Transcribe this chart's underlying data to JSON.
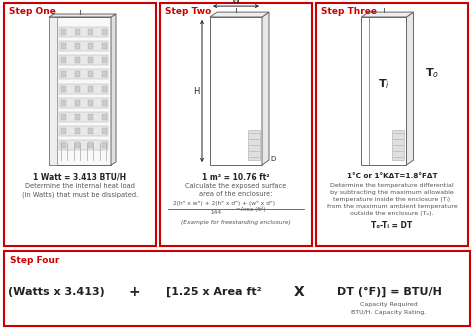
{
  "bg_color": "#ffffff",
  "border_color": "#cc0000",
  "step_label_color": "#cc0000",
  "body_text_color": "#555555",
  "dark_text_color": "#222222",
  "step1_title": "Step One",
  "step2_title": "Step Two",
  "step3_title": "Step Three",
  "step4_title": "Step Four",
  "step1_bold": "1 Watt = 3.413 BTU/H",
  "step1_body": "Determine the internal heat load\n(in Watts) that must be dissipated.",
  "step2_bold": "1 m² = 10.76 ft²",
  "step2_body": "Calculate the exposed surface\narea of the enclosure:",
  "step2_formula_num": "2(h\" x w\") + 2(h\" x d\") + (w\" x d\")",
  "step2_formula_den": "144",
  "step2_formula_eq": "=Area (ft²)",
  "step2_note": "(Example for freestanding enclosure)",
  "step3_bold": "1°C or 1°KΔT=1.8°FΔT",
  "step3_body": "Determine the temperature differential\nby subtracting the maximum allowable\ntemperature inside the enclosure (Tᵢ)\nfrom the maximum ambient temperature\noutside the enclosure (Tₒ).",
  "step3_formula": "Tₒ-Tᵢ = DT",
  "step4_formula1": "(Watts x 3.413)",
  "step4_plus": "+",
  "step4_formula2": "[1.25 x Area ft²",
  "step4_x": "X",
  "step4_formula3": "DT (°F)] = BTU/H",
  "step4_note1": "Capacity Required",
  "step4_note2": "BTU/H. Capacity Rating."
}
